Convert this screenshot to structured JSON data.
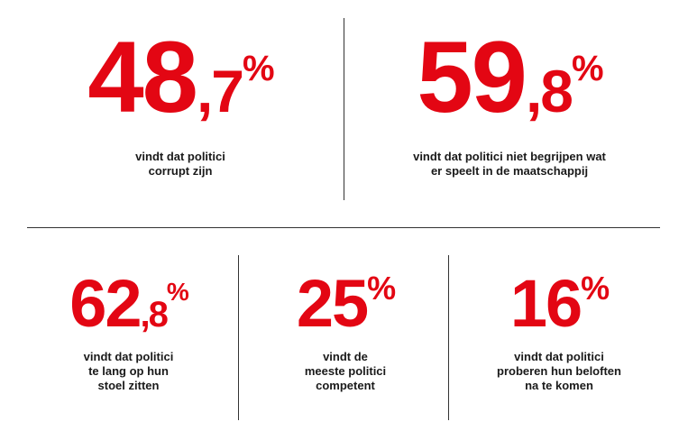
{
  "colors": {
    "accent": "#e30613",
    "text": "#1a1a1a",
    "divider": "#333333"
  },
  "stats": [
    {
      "integer": "48",
      "decimal": ",7",
      "percent": "%",
      "caption": [
        "vindt dat politici",
        "corrupt zijn"
      ]
    },
    {
      "integer": "59",
      "decimal": ",8",
      "percent": "%",
      "caption": [
        "vindt dat politici niet begrijpen wat",
        "er speelt in de maatschappij"
      ]
    },
    {
      "integer": "62",
      "decimal": ",8",
      "percent": "%",
      "caption": [
        "vindt dat politici",
        "te lang op hun",
        "stoel zitten"
      ]
    },
    {
      "integer": "25",
      "decimal": "",
      "percent": "%",
      "caption": [
        "vindt de",
        "meeste politici",
        "competent"
      ]
    },
    {
      "integer": "16",
      "decimal": "",
      "percent": "%",
      "caption": [
        "vindt dat politici",
        "proberen hun beloften",
        "na te komen"
      ]
    }
  ]
}
